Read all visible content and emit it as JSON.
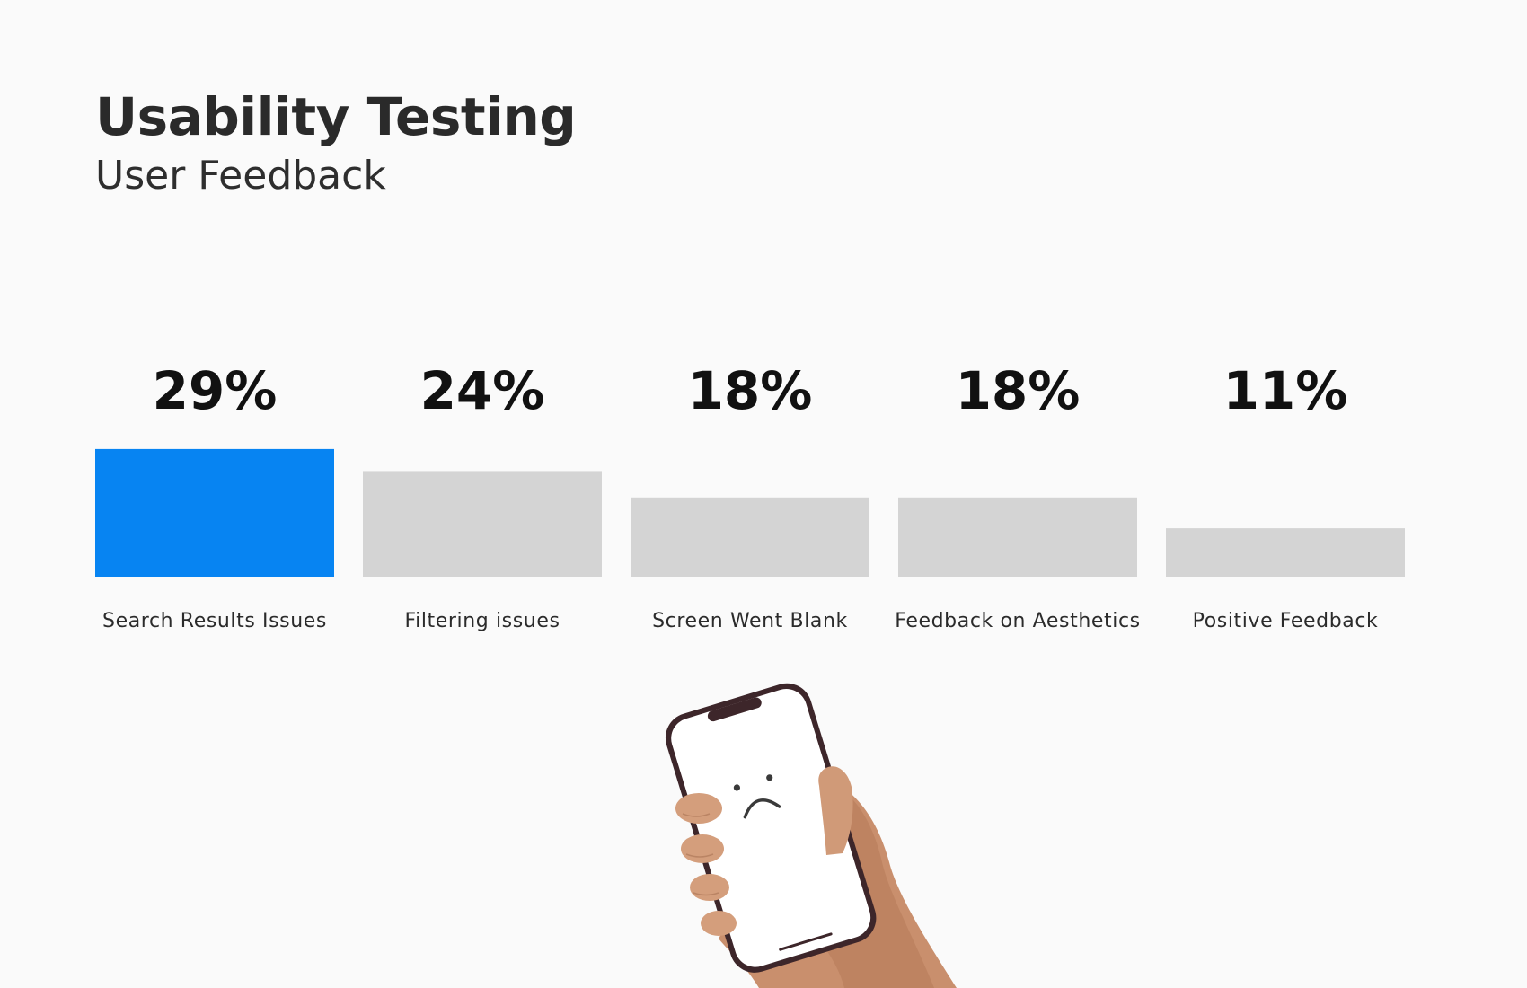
{
  "header": {
    "title": "Usability Testing",
    "subtitle": "User Feedback"
  },
  "colors": {
    "highlight": "#0784f2",
    "bar": "#d4d4d4",
    "background": "#fafafa"
  },
  "illustration": {
    "icon": "hand-holding-phone-sad-face-icon"
  },
  "chart_data": {
    "type": "bar",
    "title": "",
    "xlabel": "",
    "ylabel": "",
    "categories": [
      "Search Results Issues",
      "Filtering issues",
      "Screen Went Blank",
      "Feedback on Aesthetics",
      "Positive Feedback"
    ],
    "values": [
      29,
      24,
      18,
      18,
      11
    ],
    "value_labels": [
      "29%",
      "24%",
      "18%",
      "18%",
      "11%"
    ],
    "highlight_index": 0,
    "grid": false,
    "legend": "none"
  }
}
